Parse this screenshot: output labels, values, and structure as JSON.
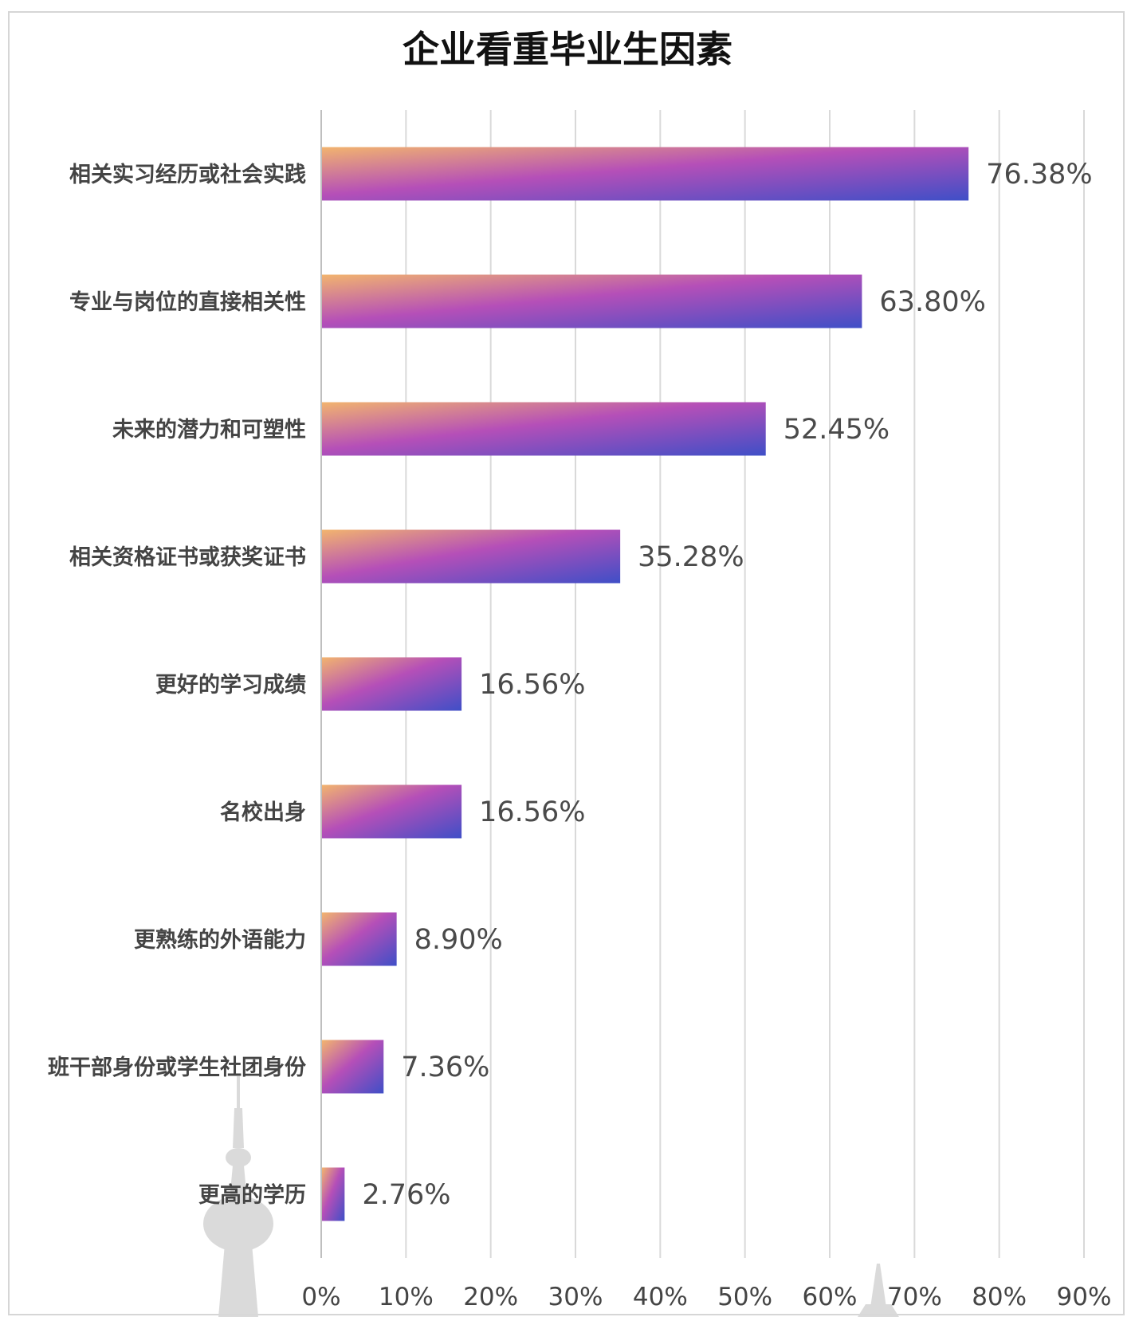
{
  "chart_data": {
    "type": "bar",
    "orientation": "horizontal",
    "title": "企业看重毕业生因素",
    "categories": [
      "相关实习经历或社会实践",
      "专业与岗位的直接相关性",
      "未来的潜力和可塑性",
      "相关资格证书或获奖证书",
      "更好的学习成绩",
      "名校出身",
      "更熟练的外语能力",
      "班干部身份或学生社团身份",
      "更高的学历"
    ],
    "values": [
      76.38,
      63.8,
      52.45,
      35.28,
      16.56,
      16.56,
      8.9,
      7.36,
      2.76
    ],
    "value_labels": [
      "76.38%",
      "63.80%",
      "52.45%",
      "35.28%",
      "16.56%",
      "16.56%",
      "8.90%",
      "7.36%",
      "2.76%"
    ],
    "xlim": [
      0,
      90
    ],
    "x_ticks": [
      0,
      10,
      20,
      30,
      40,
      50,
      60,
      70,
      80,
      90
    ],
    "x_tick_labels": [
      "0%",
      "10%",
      "20%",
      "30%",
      "40%",
      "50%",
      "60%",
      "70%",
      "80%",
      "90%"
    ],
    "xlabel": "",
    "ylabel": "",
    "grid": "vertical",
    "legend": "none",
    "bar_gradient": [
      "#f2b46e",
      "#b54fb8",
      "#3f4fc7"
    ],
    "colors": {
      "grid": "#d9d9d9",
      "text": "#444444",
      "title": "#111111",
      "frame": "#d6d6d6",
      "watermark": "#d9d9d9"
    }
  }
}
